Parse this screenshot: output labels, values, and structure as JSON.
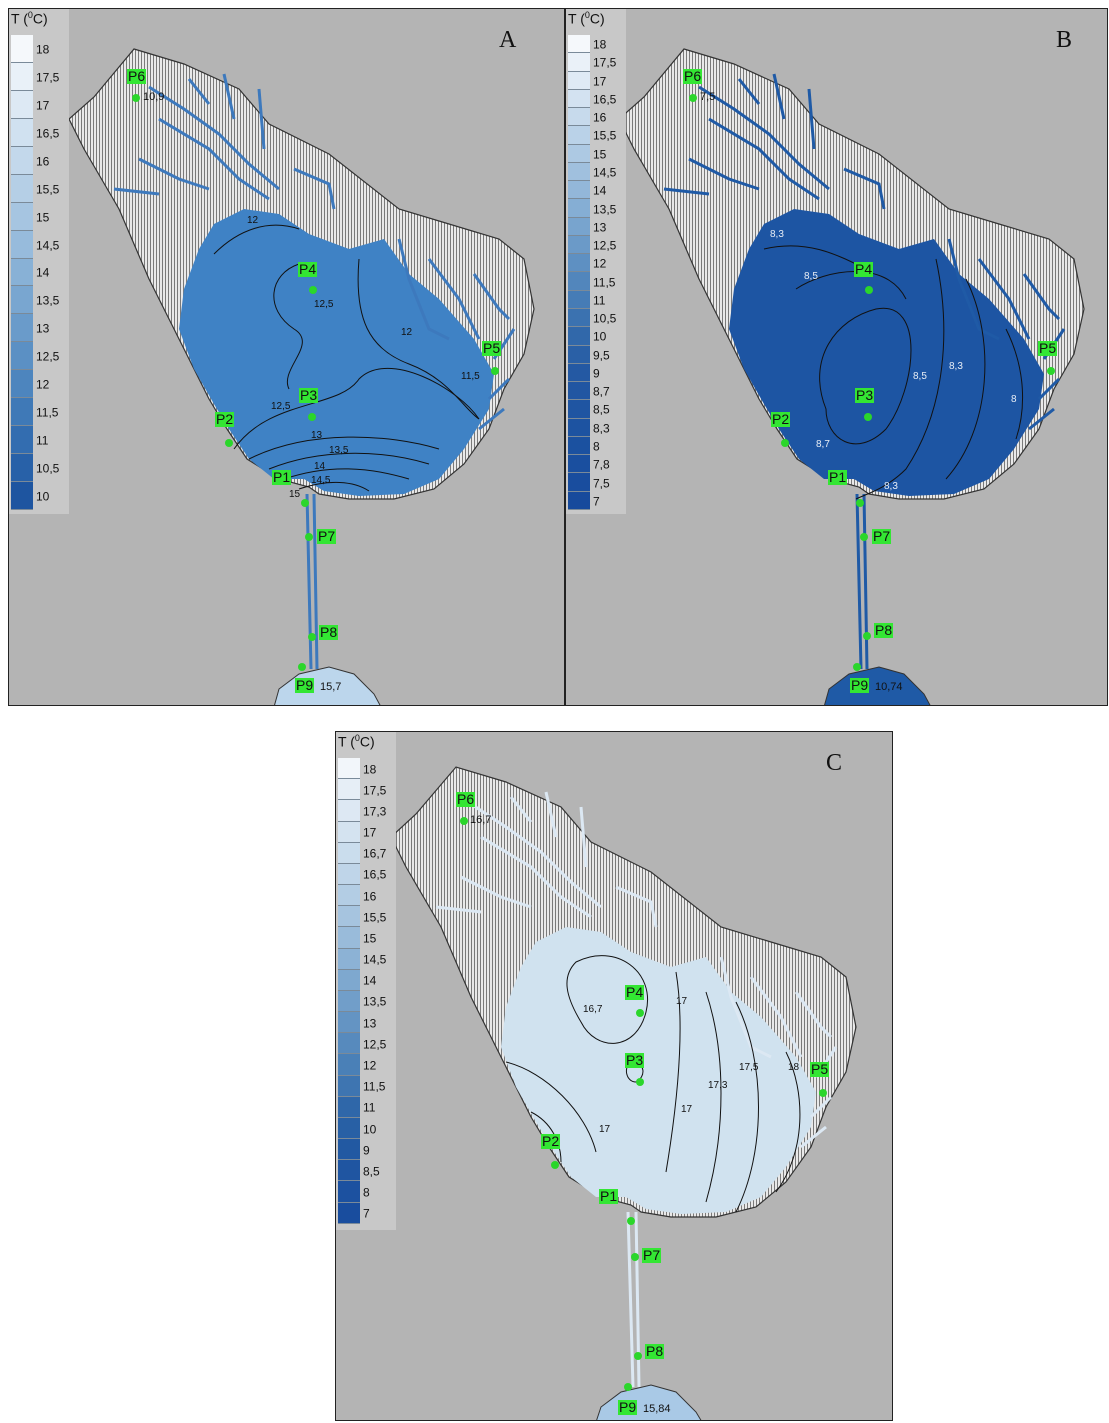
{
  "legend_title": "T (",
  "legend_unit_sup": "0",
  "legend_title_tail": "C)",
  "panels": [
    {
      "letter": "A",
      "water_color": "#3f82c5",
      "channel_color": "#3d79bd",
      "legend": [
        {
          "label": "18",
          "color": "#f5f8fb"
        },
        {
          "label": "17,5",
          "color": "#e9f1f8"
        },
        {
          "label": "17",
          "color": "#dde9f4"
        },
        {
          "label": "16,5",
          "color": "#d0e1f0"
        },
        {
          "label": "16",
          "color": "#c3d8eb"
        },
        {
          "label": "15,5",
          "color": "#b5cfe6"
        },
        {
          "label": "15",
          "color": "#a6c5e1"
        },
        {
          "label": "14,5",
          "color": "#97bbdc"
        },
        {
          "label": "14",
          "color": "#88b1d6"
        },
        {
          "label": "13,5",
          "color": "#79a6d0"
        },
        {
          "label": "13",
          "color": "#6a9bca"
        },
        {
          "label": "12,5",
          "color": "#5b90c4"
        },
        {
          "label": "12",
          "color": "#4d85be"
        },
        {
          "label": "11,5",
          "color": "#3f79b7"
        },
        {
          "label": "11",
          "color": "#336db0"
        },
        {
          "label": "10,5",
          "color": "#2861a8"
        },
        {
          "label": "10",
          "color": "#1e55a0"
        }
      ],
      "points": [
        {
          "name": "P6",
          "value": "10,9"
        },
        {
          "name": "P4",
          "value": ""
        },
        {
          "name": "P5",
          "value": ""
        },
        {
          "name": "P3",
          "value": ""
        },
        {
          "name": "P2",
          "value": ""
        },
        {
          "name": "P1",
          "value": ""
        },
        {
          "name": "P7",
          "value": ""
        },
        {
          "name": "P8",
          "value": ""
        },
        {
          "name": "P9",
          "value": "15,7"
        }
      ],
      "isolines": [
        "12",
        "12,5",
        "12",
        "11,5",
        "12,5",
        "13",
        "13,5",
        "14",
        "14,5",
        "15"
      ]
    },
    {
      "letter": "B",
      "water_color": "#1d55a3",
      "channel_color": "#1f5aa6",
      "legend": [
        {
          "label": "18",
          "color": "#f5f8fb"
        },
        {
          "label": "17,5",
          "color": "#eaf1f8"
        },
        {
          "label": "17",
          "color": "#dfeaf5"
        },
        {
          "label": "16,5",
          "color": "#d3e2f1"
        },
        {
          "label": "16",
          "color": "#c7daec"
        },
        {
          "label": "15,5",
          "color": "#bad2e8"
        },
        {
          "label": "15",
          "color": "#adc9e3"
        },
        {
          "label": "14,5",
          "color": "#a0c0de"
        },
        {
          "label": "14",
          "color": "#93b7d9"
        },
        {
          "label": "13,5",
          "color": "#85aed4"
        },
        {
          "label": "13",
          "color": "#78a4ce"
        },
        {
          "label": "12,5",
          "color": "#6b9ac8"
        },
        {
          "label": "12",
          "color": "#5e90c2"
        },
        {
          "label": "11,5",
          "color": "#5286bc"
        },
        {
          "label": "11",
          "color": "#467cb6"
        },
        {
          "label": "10,5",
          "color": "#3b72b0"
        },
        {
          "label": "10",
          "color": "#3168aa"
        },
        {
          "label": "9,5",
          "color": "#2a60a6"
        },
        {
          "label": "9",
          "color": "#2459a3"
        },
        {
          "label": "8,7",
          "color": "#2156a2"
        },
        {
          "label": "8,5",
          "color": "#1f55a2"
        },
        {
          "label": "8,3",
          "color": "#1d53a1"
        },
        {
          "label": "8",
          "color": "#1b51a0"
        },
        {
          "label": "7,8",
          "color": "#1a4f9f"
        },
        {
          "label": "7,5",
          "color": "#194d9e"
        },
        {
          "label": "7",
          "color": "#174a9c"
        }
      ],
      "points": [
        {
          "name": "P6",
          "value": "7,5"
        },
        {
          "name": "P4",
          "value": ""
        },
        {
          "name": "P5",
          "value": ""
        },
        {
          "name": "P3",
          "value": ""
        },
        {
          "name": "P2",
          "value": ""
        },
        {
          "name": "P1",
          "value": ""
        },
        {
          "name": "P7",
          "value": ""
        },
        {
          "name": "P8",
          "value": ""
        },
        {
          "name": "P9",
          "value": "10,74"
        }
      ],
      "isolines": [
        "8,3",
        "8,5",
        "8,7",
        "8,5",
        "8,3",
        "8",
        "8,3"
      ]
    },
    {
      "letter": "C",
      "water_color": "#d0e2ef",
      "channel_color": "#dce8f3",
      "legend": [
        {
          "label": "18",
          "color": "#f2f6fa"
        },
        {
          "label": "17,5",
          "color": "#e6eef6"
        },
        {
          "label": "17,3",
          "color": "#dde8f3"
        },
        {
          "label": "17",
          "color": "#d4e3f0"
        },
        {
          "label": "16,7",
          "color": "#cadded"
        },
        {
          "label": "16,5",
          "color": "#bfd5e9"
        },
        {
          "label": "16",
          "color": "#b3cde4"
        },
        {
          "label": "15,5",
          "color": "#a6c4df"
        },
        {
          "label": "15",
          "color": "#99bbda"
        },
        {
          "label": "14,5",
          "color": "#8cb2d5"
        },
        {
          "label": "14",
          "color": "#7ea8cf"
        },
        {
          "label": "13,5",
          "color": "#719ec9"
        },
        {
          "label": "13",
          "color": "#6494c3"
        },
        {
          "label": "12,5",
          "color": "#578abd"
        },
        {
          "label": "12",
          "color": "#4a80b7"
        },
        {
          "label": "11,5",
          "color": "#3e75b1"
        },
        {
          "label": "11",
          "color": "#2f67a9"
        },
        {
          "label": "10",
          "color": "#2860a5"
        },
        {
          "label": "9",
          "color": "#2259a2"
        },
        {
          "label": "8,5",
          "color": "#1f55a1"
        },
        {
          "label": "8",
          "color": "#1c51a0"
        },
        {
          "label": "7",
          "color": "#194d9e"
        }
      ],
      "points": [
        {
          "name": "P6",
          "value": "16,7"
        },
        {
          "name": "P4",
          "value": ""
        },
        {
          "name": "P5",
          "value": ""
        },
        {
          "name": "P3",
          "value": ""
        },
        {
          "name": "P2",
          "value": ""
        },
        {
          "name": "P1",
          "value": ""
        },
        {
          "name": "P7",
          "value": ""
        },
        {
          "name": "P8",
          "value": ""
        },
        {
          "name": "P9",
          "value": "15,84"
        }
      ],
      "isolines": [
        "16,7",
        "17",
        "17,3",
        "17,5",
        "18",
        "17",
        "17"
      ]
    }
  ]
}
